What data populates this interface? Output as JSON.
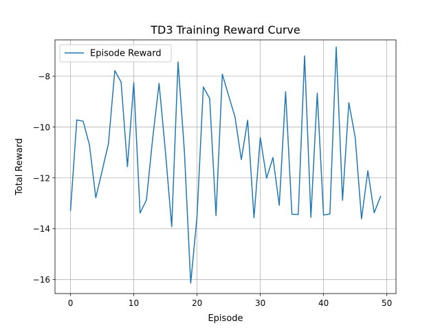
{
  "chart_data": {
    "type": "line",
    "title": "TD3 Training Reward Curve",
    "xlabel": "Episode",
    "ylabel": "Total Reward",
    "xlim": [
      -2.45,
      51.45
    ],
    "ylim": [
      -16.55,
      -6.57
    ],
    "xticks": [
      0,
      10,
      20,
      30,
      40,
      50
    ],
    "yticks": [
      -16,
      -14,
      -12,
      -10,
      -8
    ],
    "grid": true,
    "legend_position": "top-left",
    "series": [
      {
        "name": "Episode Reward",
        "color": "#1f77b4",
        "x": [
          0,
          1,
          2,
          3,
          4,
          5,
          6,
          7,
          8,
          9,
          10,
          11,
          12,
          13,
          14,
          15,
          16,
          17,
          18,
          19,
          20,
          21,
          22,
          23,
          24,
          25,
          26,
          27,
          28,
          29,
          30,
          31,
          32,
          33,
          34,
          35,
          36,
          37,
          38,
          39,
          40,
          41,
          42,
          43,
          44,
          45,
          46,
          47,
          48,
          49
        ],
        "y": [
          -13.28,
          -9.72,
          -9.77,
          -10.71,
          -12.78,
          -11.72,
          -10.65,
          -7.78,
          -8.23,
          -11.56,
          -8.25,
          -13.38,
          -12.87,
          -10.42,
          -8.28,
          -10.95,
          -13.92,
          -7.44,
          -10.95,
          -16.14,
          -13.52,
          -8.42,
          -8.88,
          -13.48,
          -7.92,
          -8.77,
          -9.6,
          -11.28,
          -9.73,
          -13.57,
          -10.41,
          -12.01,
          -11.2,
          -13.08,
          -8.61,
          -13.43,
          -13.44,
          -7.2,
          -13.55,
          -8.67,
          -13.46,
          -13.42,
          -6.85,
          -12.88,
          -9.04,
          -10.4,
          -13.61,
          -11.72,
          -13.37,
          -12.73
        ]
      }
    ]
  }
}
